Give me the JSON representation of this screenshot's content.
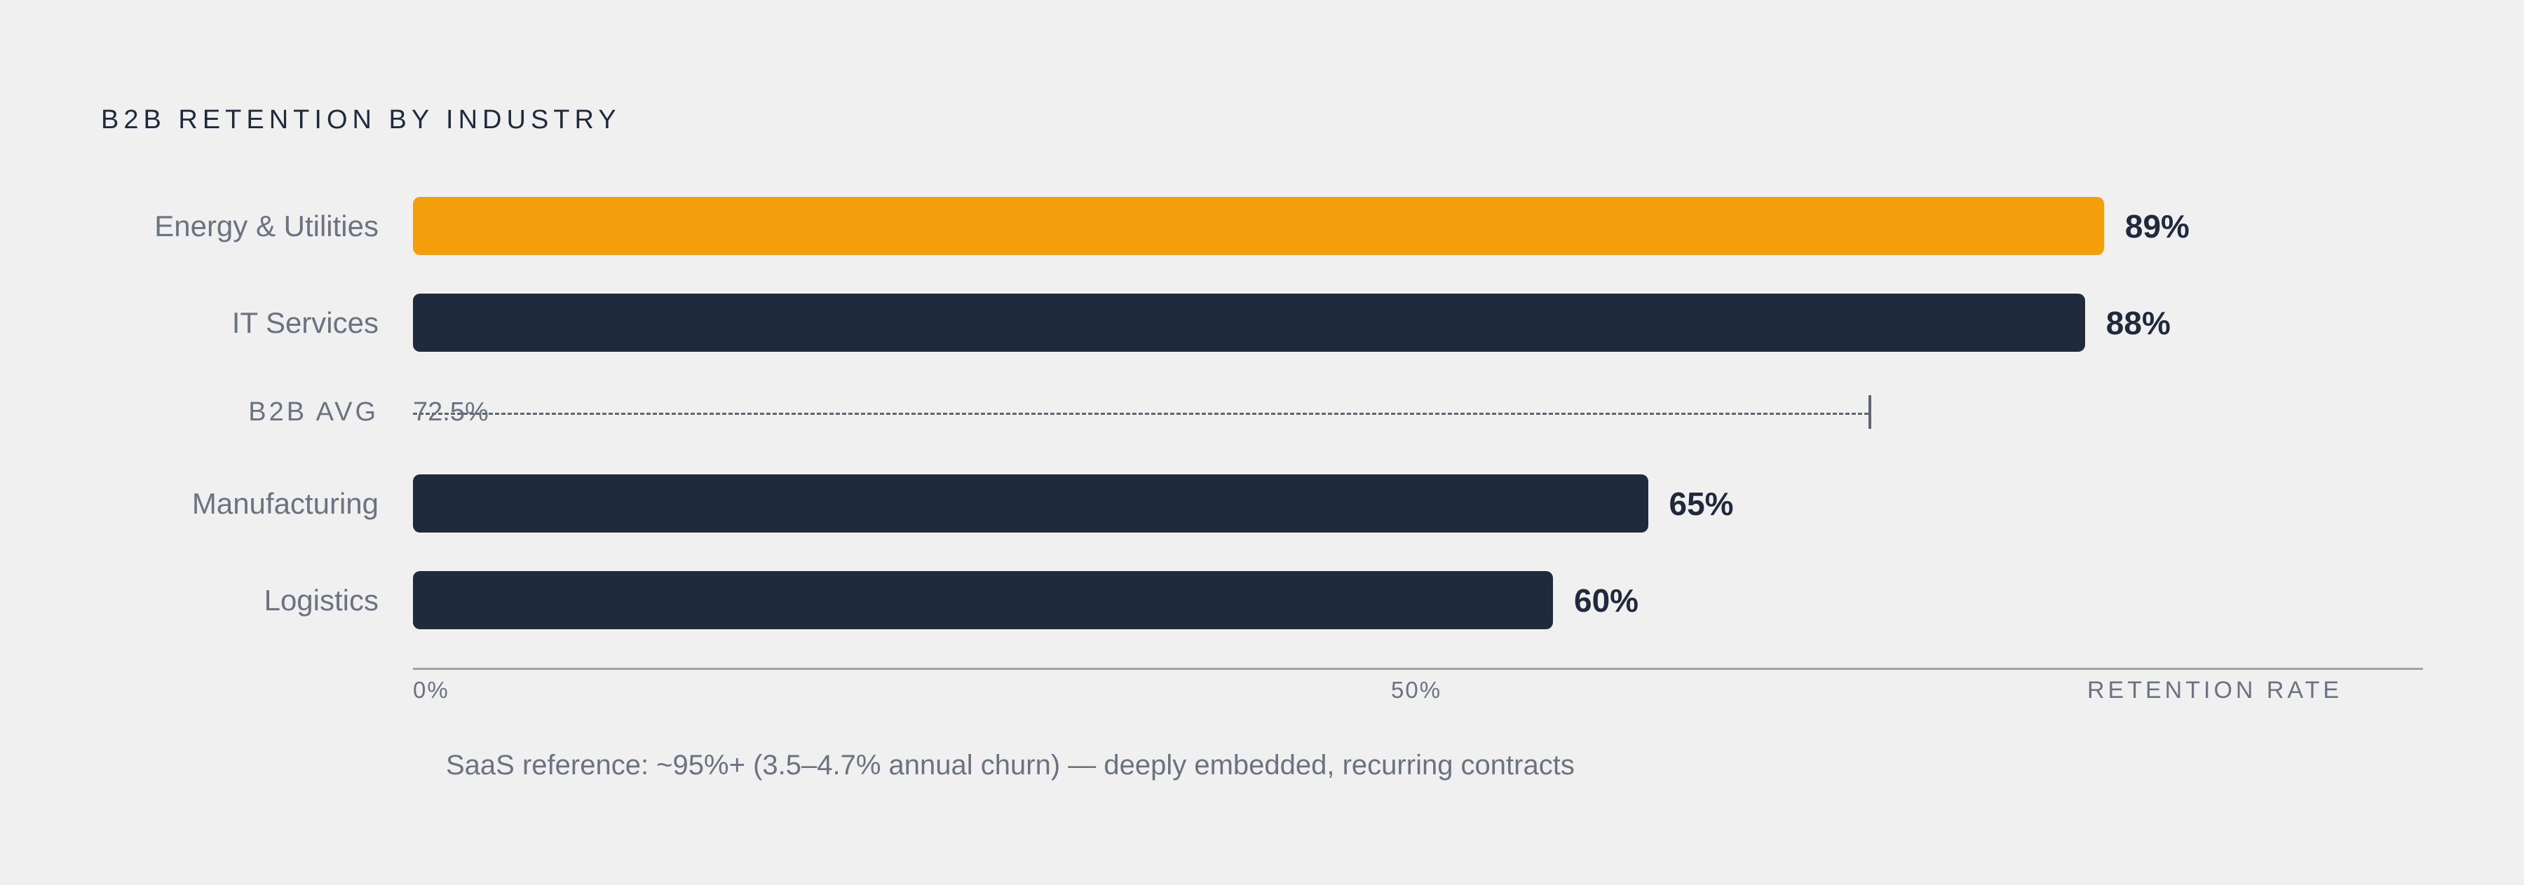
{
  "title": "B2B RETENTION BY INDUSTRY",
  "chart_data": {
    "type": "bar",
    "orientation": "horizontal",
    "title": "B2B RETENTION BY INDUSTRY",
    "xlabel": "RETENTION RATE",
    "xlim": [
      0,
      100
    ],
    "x_ticks": [
      "0%",
      "50%"
    ],
    "categories": [
      "Energy & Utilities",
      "IT Services",
      "Manufacturing",
      "Logistics"
    ],
    "values": [
      89,
      88,
      65,
      60
    ],
    "value_labels": [
      "89%",
      "88%",
      "65%",
      "60%"
    ],
    "highlight_category": "Energy & Utilities",
    "colors": {
      "highlight": "#f59e0b",
      "default": "#1f2a3c"
    },
    "reference_line": {
      "label": "B2B AVG",
      "value": 72.5,
      "value_label": "72.5%"
    },
    "annotation": "SaaS reference: ~95%+ (3.5–4.7% annual churn) — deeply embedded, recurring contracts"
  }
}
